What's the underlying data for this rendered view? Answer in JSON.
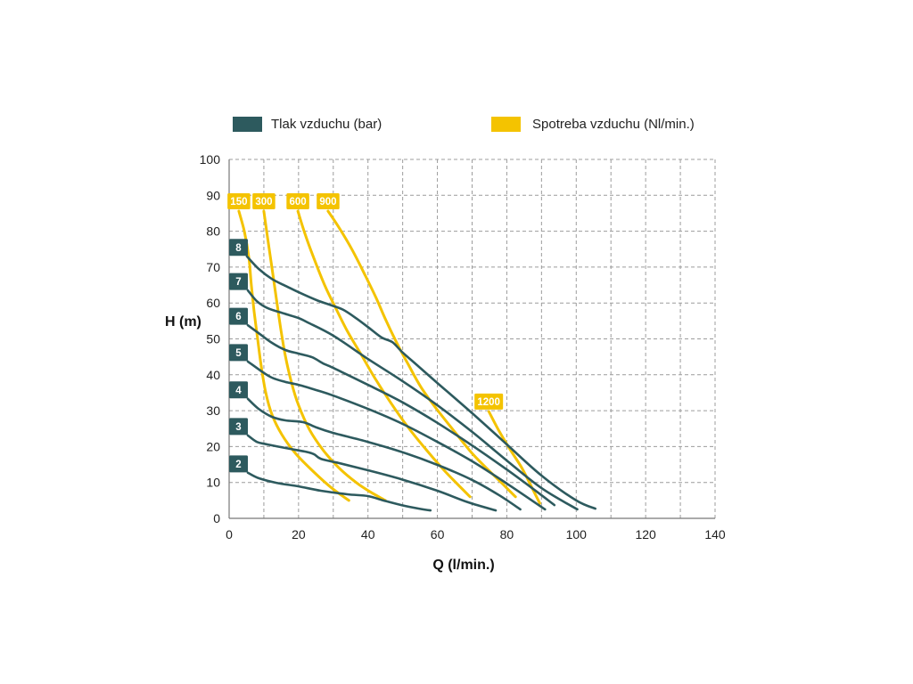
{
  "chart_data": {
    "type": "line",
    "xlabel": "Q (l/min.)",
    "ylabel": "H (m)",
    "xlim": [
      0,
      140
    ],
    "ylim": [
      0,
      100
    ],
    "xticks": [
      0,
      20,
      40,
      60,
      80,
      100,
      120,
      140
    ],
    "yticks": [
      0,
      10,
      20,
      30,
      40,
      50,
      60,
      70,
      80,
      90,
      100
    ],
    "grid": true,
    "legend": {
      "position": "top",
      "entries": [
        {
          "label": "Tlak vzduchu (bar)",
          "color": "#2d5a5e"
        },
        {
          "label": "Spotreba vzduchu (Nl/min.)",
          "color": "#f4c300"
        }
      ]
    },
    "series": [
      {
        "name": "2",
        "legend_entry": 0,
        "points": [
          [
            5.4,
            12.7
          ],
          [
            8.5,
            11.2
          ],
          [
            13.6,
            9.9
          ],
          [
            20,
            8.9
          ],
          [
            26.4,
            7.7
          ],
          [
            34.1,
            6.7
          ],
          [
            40,
            6.2
          ],
          [
            44.4,
            5.0
          ],
          [
            49.6,
            3.7
          ],
          [
            54.7,
            2.7
          ],
          [
            58,
            2.2
          ]
        ]
      },
      {
        "name": "3",
        "legend_entry": 0,
        "points": [
          [
            5.4,
            23.1
          ],
          [
            8,
            21.3
          ],
          [
            11,
            20.6
          ],
          [
            16.2,
            19.6
          ],
          [
            21.8,
            18.6
          ],
          [
            24.4,
            17.9
          ],
          [
            26.4,
            16.6
          ],
          [
            31.6,
            15.4
          ],
          [
            40,
            13.4
          ],
          [
            49.6,
            10.9
          ],
          [
            60,
            7.7
          ],
          [
            68.8,
            4.5
          ],
          [
            76.8,
            2.2
          ]
        ]
      },
      {
        "name": "4",
        "legend_entry": 0,
        "points": [
          [
            5.4,
            33.3
          ],
          [
            8.5,
            30.5
          ],
          [
            12.3,
            28.3
          ],
          [
            16.2,
            27.3
          ],
          [
            21.3,
            26.8
          ],
          [
            25.2,
            25.3
          ],
          [
            30,
            23.8
          ],
          [
            40,
            21.3
          ],
          [
            50,
            18.4
          ],
          [
            60,
            14.9
          ],
          [
            70,
            10.7
          ],
          [
            77.7,
            6.5
          ],
          [
            83.9,
            2.5
          ]
        ]
      },
      {
        "name": "5",
        "legend_entry": 0,
        "points": [
          [
            5.4,
            43.7
          ],
          [
            9,
            41.2
          ],
          [
            12.3,
            39.2
          ],
          [
            16.2,
            38
          ],
          [
            20,
            37.2
          ],
          [
            25.2,
            35.7
          ],
          [
            30,
            34.2
          ],
          [
            40,
            30.5
          ],
          [
            50,
            26.3
          ],
          [
            60,
            21.3
          ],
          [
            70,
            15.9
          ],
          [
            80,
            9.7
          ],
          [
            91,
            2.5
          ]
        ]
      },
      {
        "name": "6",
        "legend_entry": 0,
        "points": [
          [
            5.4,
            53.8
          ],
          [
            8.5,
            51.6
          ],
          [
            12.3,
            48.9
          ],
          [
            16.2,
            46.9
          ],
          [
            20,
            45.9
          ],
          [
            23.9,
            44.9
          ],
          [
            27,
            43.2
          ],
          [
            30,
            41.9
          ],
          [
            40,
            37.2
          ],
          [
            50,
            32.3
          ],
          [
            60,
            26.6
          ],
          [
            70,
            20.3
          ],
          [
            80,
            13.6
          ],
          [
            88,
            7.9
          ],
          [
            93.7,
            3.7
          ]
        ]
      },
      {
        "name": "7",
        "legend_entry": 0,
        "points": [
          [
            5.4,
            63.5
          ],
          [
            8,
            60.5
          ],
          [
            11,
            58.6
          ],
          [
            15.7,
            57.1
          ],
          [
            20,
            55.8
          ],
          [
            22.6,
            54.6
          ],
          [
            30,
            50.9
          ],
          [
            40,
            44.4
          ],
          [
            50,
            38.2
          ],
          [
            60,
            31.5
          ],
          [
            70,
            24.1
          ],
          [
            80,
            16.1
          ],
          [
            90,
            8.4
          ],
          [
            100.3,
            2.5
          ]
        ]
      },
      {
        "name": "8",
        "legend_entry": 0,
        "points": [
          [
            5.1,
            73
          ],
          [
            8.5,
            69.5
          ],
          [
            12.3,
            66.7
          ],
          [
            16.2,
            64.8
          ],
          [
            20,
            63
          ],
          [
            25.2,
            60.8
          ],
          [
            29.6,
            59.3
          ],
          [
            32.9,
            58.1
          ],
          [
            36.8,
            55.6
          ],
          [
            40,
            53.3
          ],
          [
            43.9,
            50.4
          ],
          [
            47,
            49.1
          ],
          [
            50,
            46.2
          ],
          [
            54.7,
            42.2
          ],
          [
            60,
            37.7
          ],
          [
            70,
            29.3
          ],
          [
            80,
            20.6
          ],
          [
            90,
            11.9
          ],
          [
            100,
            5
          ],
          [
            105.5,
            2.7
          ]
        ]
      },
      {
        "name": "150",
        "legend_entry": 1,
        "points": [
          [
            2.8,
            85.6
          ],
          [
            4.4,
            79.9
          ],
          [
            5.7,
            72.5
          ],
          [
            6.4,
            65
          ],
          [
            7.2,
            57.6
          ],
          [
            8.2,
            50.1
          ],
          [
            9.2,
            42.7
          ],
          [
            10.5,
            35.2
          ],
          [
            12.3,
            29
          ],
          [
            15.2,
            23.3
          ],
          [
            19.3,
            17.9
          ],
          [
            24.4,
            12.9
          ],
          [
            29.6,
            8.4
          ],
          [
            34.5,
            5
          ]
        ]
      },
      {
        "name": "300",
        "legend_entry": 1,
        "points": [
          [
            10,
            85.6
          ],
          [
            11,
            78.7
          ],
          [
            12.3,
            70
          ],
          [
            13.6,
            61.3
          ],
          [
            14.9,
            52.6
          ],
          [
            16.2,
            45.2
          ],
          [
            18,
            37.7
          ],
          [
            20,
            31.5
          ],
          [
            23.1,
            24.8
          ],
          [
            27,
            19.1
          ],
          [
            31.6,
            14.1
          ],
          [
            36.7,
            9.9
          ],
          [
            40.6,
            7.4
          ],
          [
            45,
            5
          ]
        ]
      },
      {
        "name": "600",
        "legend_entry": 1,
        "points": [
          [
            19.8,
            85.6
          ],
          [
            21.8,
            79.4
          ],
          [
            24.4,
            72.5
          ],
          [
            27.5,
            65
          ],
          [
            30.6,
            58.8
          ],
          [
            34.1,
            52.1
          ],
          [
            38,
            45.7
          ],
          [
            41.9,
            39.2
          ],
          [
            46.5,
            32.3
          ],
          [
            51.6,
            25.3
          ],
          [
            56.8,
            19.1
          ],
          [
            62.4,
            12.9
          ],
          [
            69.4,
            6
          ]
        ]
      },
      {
        "name": "900",
        "legend_entry": 1,
        "points": [
          [
            28.5,
            85.6
          ],
          [
            31.6,
            81.1
          ],
          [
            35.4,
            74.9
          ],
          [
            39.3,
            67.5
          ],
          [
            42.4,
            61.3
          ],
          [
            45.2,
            55.1
          ],
          [
            48.3,
            48.9
          ],
          [
            51.7,
            42.7
          ],
          [
            55.3,
            36.5
          ],
          [
            59.9,
            30.3
          ],
          [
            65,
            24.1
          ],
          [
            70.2,
            17.9
          ],
          [
            75.3,
            12.9
          ],
          [
            79.2,
            9.2
          ],
          [
            82.5,
            6
          ]
        ]
      },
      {
        "name": "1200",
        "legend_entry": 1,
        "points": [
          [
            74.8,
            29.8
          ],
          [
            77.9,
            24.1
          ],
          [
            81,
            19.1
          ],
          [
            84.3,
            14.1
          ],
          [
            86.9,
            9.2
          ],
          [
            89.5,
            4.2
          ]
        ]
      }
    ]
  }
}
